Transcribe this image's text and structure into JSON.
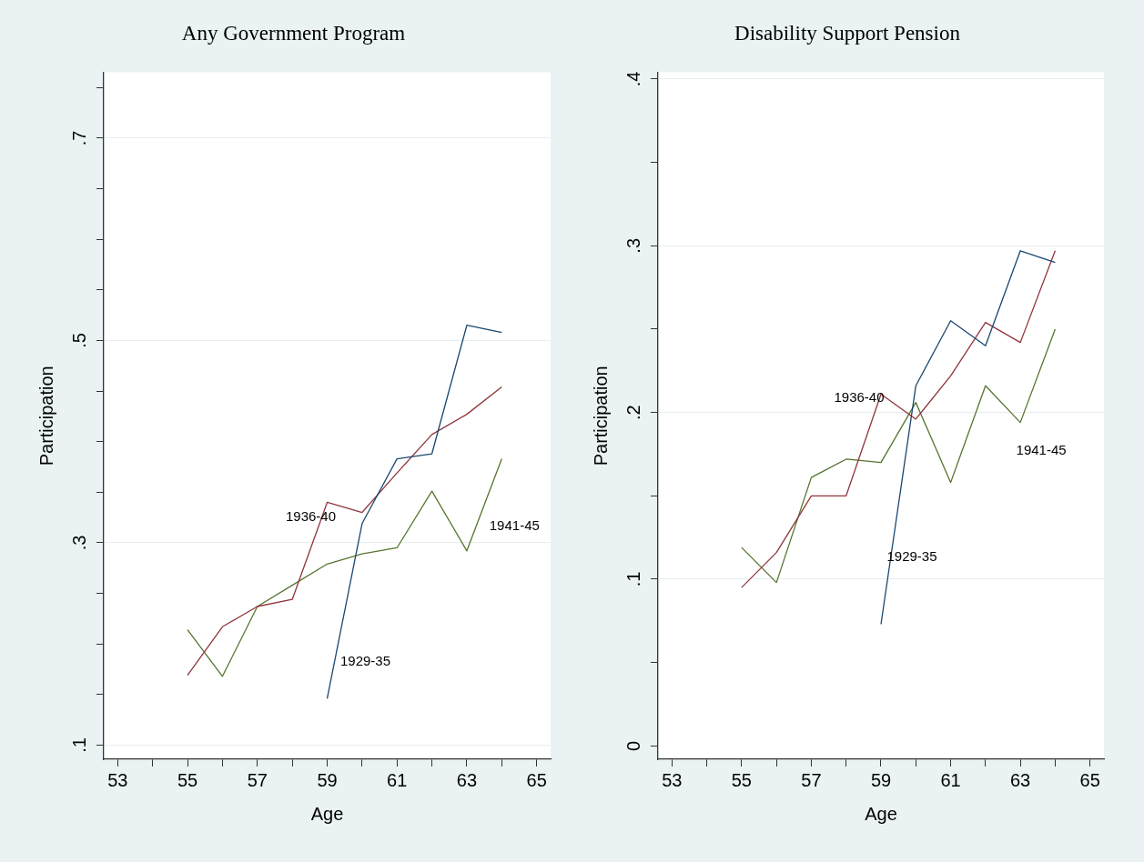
{
  "chart_data": [
    {
      "type": "line",
      "title": "Any Government Program",
      "xlabel": "Age",
      "ylabel": "Participation",
      "xlim": [
        52.6,
        65.4
      ],
      "xticks": [
        53,
        {
          "value": 54,
          "label": null
        },
        55,
        {
          "value": 56,
          "label": null
        },
        57,
        {
          "value": 58,
          "label": null
        },
        59,
        {
          "value": 60,
          "label": null
        },
        61,
        {
          "value": 62,
          "label": null
        },
        63,
        {
          "value": 64,
          "label": null
        },
        65
      ],
      "ylim": [
        0.086,
        0.765
      ],
      "yticks": [
        {
          "value": 0.1,
          "label": ".1"
        },
        {
          "value": 0.15,
          "label": null
        },
        {
          "value": 0.2,
          "label": null
        },
        {
          "value": 0.25,
          "label": null
        },
        {
          "value": 0.3,
          "label": ".3"
        },
        {
          "value": 0.35,
          "label": null
        },
        {
          "value": 0.4,
          "label": null
        },
        {
          "value": 0.45,
          "label": null
        },
        {
          "value": 0.5,
          "label": ".5"
        },
        {
          "value": 0.55,
          "label": null
        },
        {
          "value": 0.6,
          "label": null
        },
        {
          "value": 0.65,
          "label": null
        },
        {
          "value": 0.7,
          "label": ".7"
        },
        {
          "value": 0.75,
          "label": null
        }
      ],
      "grid": "y",
      "marker": "none",
      "line_style": "solid",
      "series": [
        {
          "name": "1929-35",
          "color": "#1a476f",
          "x": [
            59,
            60,
            61,
            62,
            63,
            64
          ],
          "values": [
            0.146,
            0.319,
            0.383,
            0.388,
            0.515,
            0.508
          ]
        },
        {
          "name": "1936-40",
          "color": "#90353b",
          "x": [
            55,
            56,
            57,
            58,
            59,
            60,
            61,
            62,
            63,
            64
          ],
          "values": [
            0.169,
            0.217,
            0.237,
            0.244,
            0.34,
            0.33,
            0.369,
            0.407,
            0.427,
            0.454
          ]
        },
        {
          "name": "1941-45",
          "color": "#55752f",
          "x": [
            55,
            56,
            57,
            58,
            59,
            60,
            61,
            62,
            63,
            64
          ],
          "values": [
            0.214,
            0.168,
            0.237,
            0.258,
            0.279,
            0.289,
            0.295,
            0.351,
            0.292,
            0.383
          ]
        }
      ]
    },
    {
      "type": "line",
      "title": "Disability Support Pension",
      "xlabel": "Age",
      "ylabel": "Participation",
      "xlim": [
        52.6,
        65.4
      ],
      "xticks": [
        53,
        {
          "value": 54,
          "label": null
        },
        55,
        {
          "value": 56,
          "label": null
        },
        57,
        {
          "value": 58,
          "label": null
        },
        59,
        {
          "value": 60,
          "label": null
        },
        61,
        {
          "value": 62,
          "label": null
        },
        63,
        {
          "value": 64,
          "label": null
        },
        65
      ],
      "ylim": [
        -0.008,
        0.404
      ],
      "yticks": [
        0,
        {
          "value": 0.05,
          "label": null
        },
        {
          "value": 0.1,
          "label": ".1"
        },
        {
          "value": 0.15,
          "label": null
        },
        {
          "value": 0.2,
          "label": ".2"
        },
        {
          "value": 0.25,
          "label": null
        },
        {
          "value": 0.3,
          "label": ".3"
        },
        {
          "value": 0.35,
          "label": null
        },
        {
          "value": 0.4,
          "label": ".4"
        }
      ],
      "grid": "y",
      "marker": "none",
      "line_style": "solid",
      "series": [
        {
          "name": "1929-35",
          "color": "#1a476f",
          "x": [
            59,
            60,
            61,
            62,
            63,
            64
          ],
          "values": [
            0.073,
            0.216,
            0.255,
            0.24,
            0.297,
            0.29
          ]
        },
        {
          "name": "1936-40",
          "color": "#90353b",
          "x": [
            55,
            56,
            57,
            58,
            59,
            60,
            61,
            62,
            63,
            64
          ],
          "values": [
            0.095,
            0.116,
            0.15,
            0.15,
            0.211,
            0.196,
            0.222,
            0.254,
            0.242,
            0.297
          ]
        },
        {
          "name": "1941-45",
          "color": "#55752f",
          "x": [
            55,
            56,
            57,
            58,
            59,
            60,
            61,
            62,
            63,
            64
          ],
          "values": [
            0.119,
            0.098,
            0.161,
            0.172,
            0.17,
            0.206,
            0.158,
            0.216,
            0.194,
            0.25
          ]
        }
      ]
    }
  ]
}
